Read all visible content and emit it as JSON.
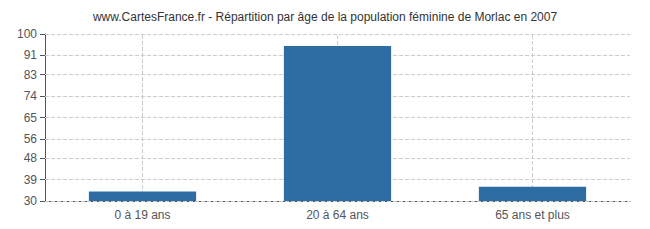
{
  "chart_data": {
    "type": "bar",
    "title": "www.CartesFrance.fr - Répartition par âge de la population féminine de Morlac en 2007",
    "categories": [
      "0 à 19 ans",
      "20 à 64 ans",
      "65 ans et plus"
    ],
    "values": [
      34,
      95,
      36
    ],
    "color": "#2e6da4",
    "ylim": [
      30,
      100
    ],
    "yticks": [
      30,
      39,
      48,
      56,
      65,
      74,
      83,
      91,
      100
    ],
    "grid": true
  }
}
